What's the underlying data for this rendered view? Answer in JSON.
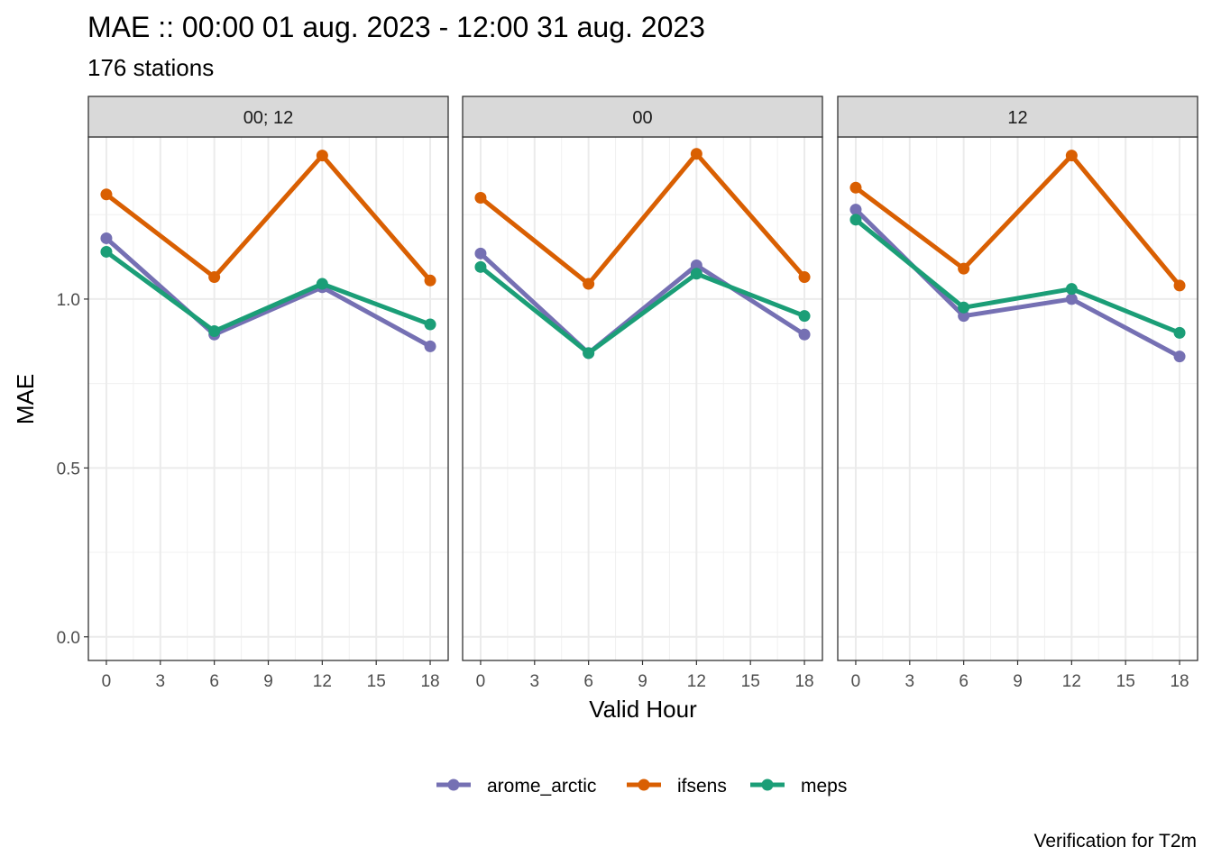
{
  "chart_data": {
    "type": "line",
    "title": "MAE :: 00:00 01 aug. 2023 - 12:00 31 aug. 2023",
    "subtitle": "176 stations",
    "xlabel": "Valid Hour",
    "ylabel": "MAE",
    "caption": "Verification for T2m",
    "x": [
      0,
      6,
      12,
      18
    ],
    "xlim": [
      -1,
      19
    ],
    "ylim": [
      -0.07,
      1.48
    ],
    "xticks": [
      0,
      3,
      6,
      9,
      12,
      15,
      18
    ],
    "xtick_labels": [
      "0",
      "3",
      "6",
      "9",
      "12",
      "15",
      "18"
    ],
    "yticks": [
      0.0,
      0.5,
      1.0
    ],
    "ytick_labels": [
      "0.0",
      "0.5",
      "1.0"
    ],
    "grid": true,
    "legend_position": "bottom",
    "panels": [
      {
        "label": "00; 12",
        "series": [
          {
            "name": "arome_arctic",
            "color": "#7570b3",
            "values": [
              1.18,
              0.895,
              1.035,
              0.86
            ]
          },
          {
            "name": "ifsens",
            "color": "#d95f02",
            "values": [
              1.31,
              1.065,
              1.425,
              1.055
            ]
          },
          {
            "name": "meps",
            "color": "#1b9e77",
            "values": [
              1.14,
              0.905,
              1.045,
              0.925
            ]
          }
        ]
      },
      {
        "label": "00",
        "series": [
          {
            "name": "arome_arctic",
            "color": "#7570b3",
            "values": [
              1.135,
              0.84,
              1.1,
              0.895
            ]
          },
          {
            "name": "ifsens",
            "color": "#d95f02",
            "values": [
              1.3,
              1.045,
              1.43,
              1.065
            ]
          },
          {
            "name": "meps",
            "color": "#1b9e77",
            "values": [
              1.095,
              0.84,
              1.075,
              0.95
            ]
          }
        ]
      },
      {
        "label": "12",
        "series": [
          {
            "name": "arome_arctic",
            "color": "#7570b3",
            "values": [
              1.265,
              0.95,
              1.0,
              0.83
            ]
          },
          {
            "name": "ifsens",
            "color": "#d95f02",
            "values": [
              1.33,
              1.09,
              1.425,
              1.04
            ]
          },
          {
            "name": "meps",
            "color": "#1b9e77",
            "values": [
              1.235,
              0.975,
              1.03,
              0.9
            ]
          }
        ]
      }
    ],
    "legend": [
      {
        "name": "arome_arctic",
        "color": "#7570b3"
      },
      {
        "name": "ifsens",
        "color": "#d95f02"
      },
      {
        "name": "meps",
        "color": "#1b9e77"
      }
    ]
  }
}
